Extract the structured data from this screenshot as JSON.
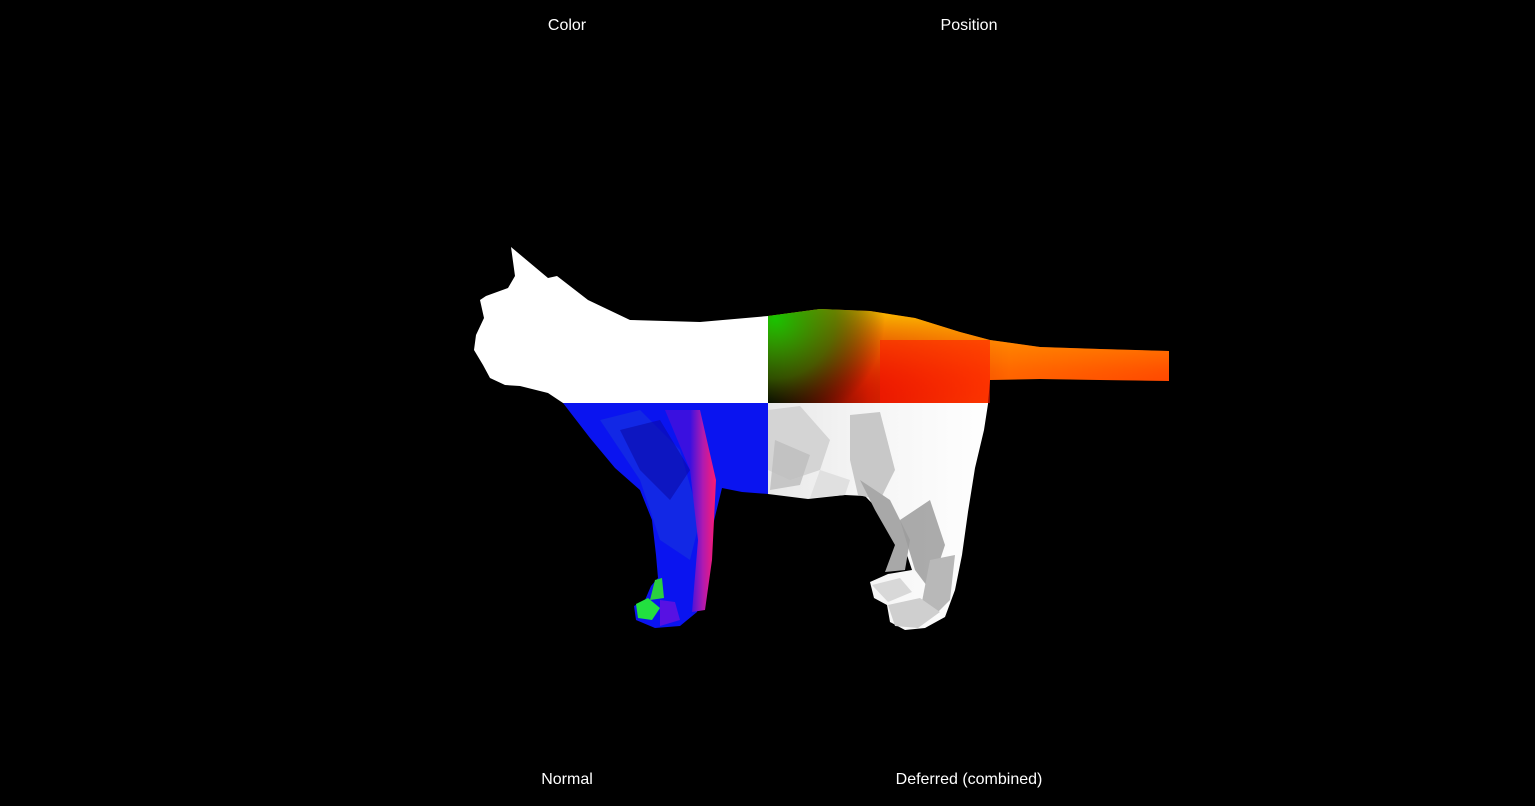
{
  "viewport": {
    "background": "#000000"
  },
  "labels": {
    "color": "Color",
    "position": "Position",
    "normal": "Normal",
    "deferred": "Deferred (combined)"
  },
  "buffers": {
    "color_fill": "#ffffff",
    "normal_fill": "#0a14f0",
    "normal_accent_pink": "#e0148c",
    "normal_accent_green": "#22e040",
    "position_colors": [
      "#1aa01a",
      "#ffc000",
      "#ff2000",
      "#000000"
    ],
    "deferred_shade_light": "#ffffff",
    "deferred_shade_dark": "#8c8c8c"
  },
  "model": {
    "name_icon": "cat-mesh"
  }
}
